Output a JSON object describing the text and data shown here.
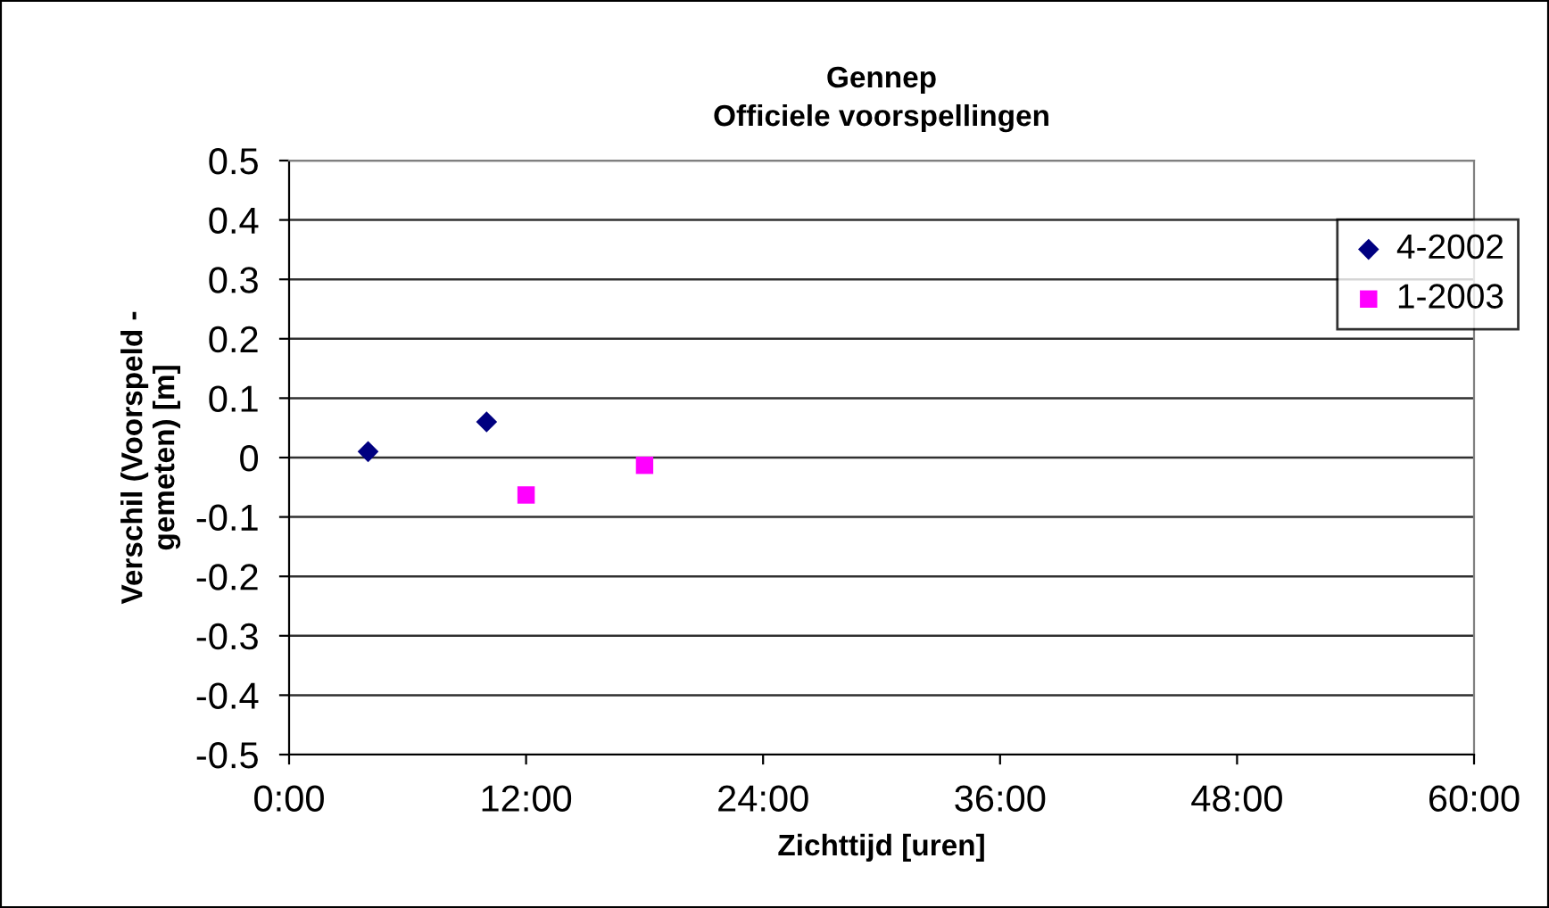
{
  "chart_data": {
    "type": "scatter",
    "title": "Gennep\nOfficiele voorspellingen",
    "xlabel": "Zichttijd [uren]",
    "ylabel": "Verschil (Voorspeld -\ngemeten) [m]",
    "series": [
      {
        "name": "4-2002",
        "color": "#000080",
        "marker": "diamond",
        "x": [
          4,
          10
        ],
        "values": [
          0.01,
          0.06
        ]
      },
      {
        "name": "1-2003",
        "color": "#ff00ff",
        "marker": "square",
        "x": [
          12,
          18
        ],
        "values": [
          -0.063,
          -0.013
        ]
      }
    ],
    "xlim": [
      0,
      60
    ],
    "xticks": [
      {
        "value": 0,
        "label": "0:00"
      },
      {
        "value": 12,
        "label": "12:00"
      },
      {
        "value": 24,
        "label": "24:00"
      },
      {
        "value": 36,
        "label": "36:00"
      },
      {
        "value": 48,
        "label": "48:00"
      },
      {
        "value": 60,
        "label": "60:00"
      }
    ],
    "ylim": [
      -0.5,
      0.5
    ],
    "yticks": [
      -0.5,
      -0.4,
      -0.3,
      -0.2,
      -0.1,
      0,
      0.1,
      0.2,
      0.3,
      0.4,
      0.5
    ],
    "grid": "y",
    "legend": "right"
  }
}
